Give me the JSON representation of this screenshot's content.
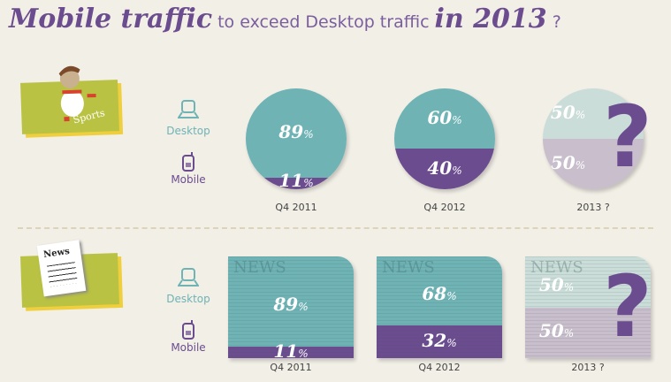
{
  "title": {
    "part1": "Mobile traffic",
    "part2": "to exceed Desktop traffic",
    "part3": "in 2013",
    "part4": "?"
  },
  "colors": {
    "desktop": "#6fb3b5",
    "mobile": "#6b4c8f",
    "background": "#f2efe7",
    "badge": "#b9c242"
  },
  "legend": {
    "desktop": "Desktop",
    "mobile": "Mobile",
    "desktop_icon": "laptop-icon",
    "mobile_icon": "mobile-phone-icon"
  },
  "chart_data": [
    {
      "type": "bar",
      "category": "Sports",
      "badge_label": "Sports",
      "categories": [
        "Q4 2011",
        "Q4 2012",
        "2013 ?"
      ],
      "series": [
        {
          "name": "Desktop",
          "values": [
            89,
            60,
            50
          ]
        },
        {
          "name": "Mobile",
          "values": [
            11,
            40,
            50
          ]
        }
      ],
      "labels": {
        "desktop": [
          "89",
          "60",
          "50"
        ],
        "mobile": [
          "11",
          "40",
          "50"
        ],
        "unit": "%"
      }
    },
    {
      "type": "bar",
      "category": "News",
      "badge_label": "News",
      "categories": [
        "Q4 2011",
        "Q4 2012",
        "2013 ?"
      ],
      "series": [
        {
          "name": "Desktop",
          "values": [
            89,
            68,
            50
          ]
        },
        {
          "name": "Mobile",
          "values": [
            11,
            32,
            50
          ]
        }
      ],
      "labels": {
        "desktop": [
          "89",
          "68",
          "50"
        ],
        "mobile": [
          "11",
          "32",
          "50"
        ],
        "unit": "%"
      }
    }
  ],
  "question_mark": "?"
}
